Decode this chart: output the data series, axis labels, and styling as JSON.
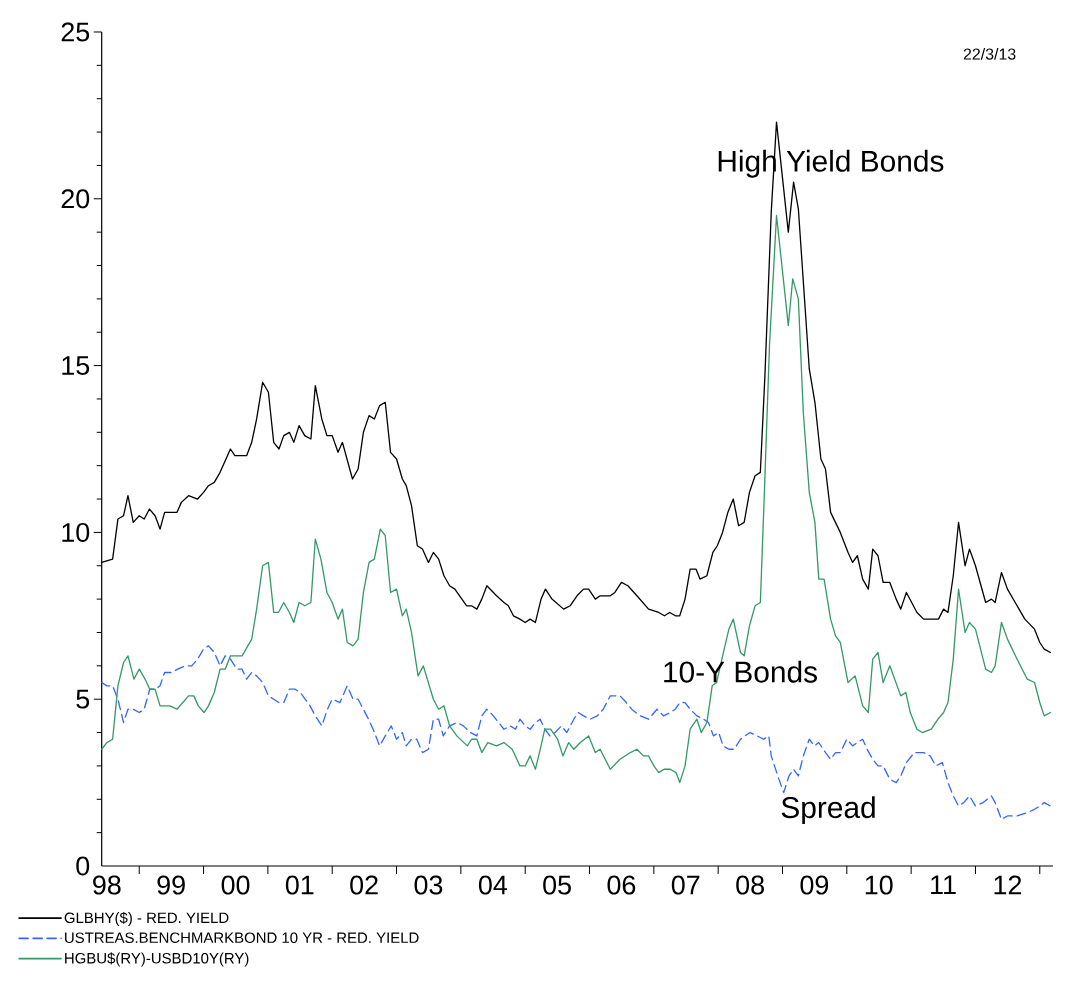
{
  "chart_data": {
    "type": "line",
    "xlim": [
      "1998-06-02",
      "2013-03-17"
    ],
    "xticks": [
      {
        "value": "1999-01-01",
        "label": null
      },
      {
        "value": "2000-01-01",
        "label": null
      },
      {
        "value": "2001-01-01",
        "label": null
      },
      {
        "value": "2002-01-01",
        "label": null
      },
      {
        "value": "2003-01-01",
        "label": null
      },
      {
        "value": "2004-01-01",
        "label": null
      },
      {
        "value": "2005-01-01",
        "label": null
      },
      {
        "value": "2006-01-01",
        "label": null
      },
      {
        "value": "2007-01-01",
        "label": null
      },
      {
        "value": "2008-01-01",
        "label": null
      },
      {
        "value": "2009-01-01",
        "label": null
      },
      {
        "value": "2010-01-01",
        "label": null
      },
      {
        "value": "2011-01-01",
        "label": null
      },
      {
        "value": "2012-01-01",
        "label": null
      },
      {
        "value": "2013-01-01",
        "label": null
      },
      {
        "value": "1998-07-01",
        "label": "98"
      },
      {
        "value": "1999-07-01",
        "label": "99"
      },
      {
        "value": "2000-07-01",
        "label": "00"
      },
      {
        "value": "2001-07-01",
        "label": "01"
      },
      {
        "value": "2002-07-01",
        "label": "02"
      },
      {
        "value": "2003-07-01",
        "label": "03"
      },
      {
        "value": "2004-07-01",
        "label": "04"
      },
      {
        "value": "2005-07-01",
        "label": "05"
      },
      {
        "value": "2006-07-01",
        "label": "06"
      },
      {
        "value": "2007-07-01",
        "label": "07"
      },
      {
        "value": "2008-07-01",
        "label": "08"
      },
      {
        "value": "2009-07-01",
        "label": "09"
      },
      {
        "value": "2010-07-01",
        "label": "10"
      },
      {
        "value": "2011-07-01",
        "label": "11"
      },
      {
        "value": "2012-07-01",
        "label": "12"
      }
    ],
    "ylim": [
      0,
      25
    ],
    "yticks": [
      0,
      {
        "value": 1,
        "label": null
      },
      {
        "value": 2,
        "label": null
      },
      {
        "value": 3,
        "label": null
      },
      {
        "value": 4,
        "label": null
      },
      5,
      {
        "value": 6,
        "label": null
      },
      {
        "value": 7,
        "label": null
      },
      {
        "value": 8,
        "label": null
      },
      {
        "value": 9,
        "label": null
      },
      10,
      {
        "value": 11,
        "label": null
      },
      {
        "value": 12,
        "label": null
      },
      {
        "value": 13,
        "label": null
      },
      {
        "value": 14,
        "label": null
      },
      15,
      {
        "value": 16,
        "label": null
      },
      {
        "value": 17,
        "label": null
      },
      {
        "value": 18,
        "label": null
      },
      {
        "value": 19,
        "label": null
      },
      20,
      {
        "value": 21,
        "label": null
      },
      {
        "value": 22,
        "label": null
      },
      {
        "value": 23,
        "label": null
      },
      {
        "value": 24,
        "label": null
      },
      25
    ],
    "marker": "none",
    "legend": "bottom",
    "annotations": [
      "22/3/13",
      "High Yield Bonds",
      "10-Y Bonds",
      "Spread"
    ],
    "series": [
      {
        "name": "GLBHY($) - RED. YIELD",
        "color": "#000000",
        "line_style": "solid",
        "x": [
          "1998-06-02",
          "1998-08-03",
          "1998-09-02",
          "1998-10-04",
          "1998-10-29",
          "1998-11-28",
          "1999-01-01",
          "1999-01-29",
          "1999-02-28",
          "1999-04-01",
          "1999-04-29",
          "1999-05-25",
          "1999-07-04",
          "1999-08-03",
          "1999-08-28",
          "1999-10-08",
          "1999-11-28",
          "2000-01-01",
          "2000-01-29",
          "2000-03-02",
          "2000-04-04",
          "2000-06-02",
          "2000-06-27",
          "2000-08-07",
          "2000-09-02",
          "2000-10-01",
          "2000-10-29",
          "2000-12-02",
          "2001-01-04",
          "2001-02-03",
          "2001-03-05",
          "2001-04-01",
          "2001-05-03",
          "2001-05-28",
          "2001-06-27",
          "2001-07-29",
          "2001-09-02",
          "2001-09-27",
          "2001-11-03",
          "2001-12-02",
          "2002-01-01",
          "2002-02-03",
          "2002-02-28",
          "2002-04-26",
          "2002-05-28",
          "2002-06-27",
          "2002-07-29",
          "2002-08-28",
          "2002-09-27",
          "2002-10-29",
          "2002-11-28",
          "2003-01-01",
          "2003-02-03",
          "2003-02-25",
          "2003-03-27",
          "2003-04-29",
          "2003-05-28",
          "2003-07-01",
          "2003-07-29",
          "2003-08-28",
          "2003-09-27",
          "2003-10-29",
          "2003-11-28",
          "2004-02-03",
          "2004-03-02",
          "2004-04-01",
          "2004-04-29",
          "2004-05-28",
          "2004-07-22",
          "2004-09-02",
          "2004-09-27",
          "2004-10-26",
          "2004-12-02",
          "2005-01-01",
          "2005-01-29",
          "2005-02-28",
          "2005-04-01",
          "2005-04-26",
          "2005-06-02",
          "2005-08-07",
          "2005-09-13",
          "2005-10-22",
          "2005-11-28",
          "2005-12-27",
          "2006-02-03",
          "2006-03-02",
          "2006-04-29",
          "2006-05-25",
          "2006-07-01",
          "2006-08-07",
          "2006-09-27",
          "2006-12-02",
          "2007-01-29",
          "2007-03-02",
          "2007-04-01",
          "2007-05-03",
          "2007-05-28",
          "2007-06-27",
          "2007-07-26",
          "2007-08-28",
          "2007-09-20",
          "2007-10-29",
          "2007-12-02",
          "2007-12-27",
          "2008-01-26",
          "2008-02-25",
          "2008-03-27",
          "2008-04-26",
          "2008-05-28",
          "2008-06-27",
          "2008-07-29",
          "2008-08-28",
          "2008-09-23",
          "2008-10-29",
          "2008-11-28",
          "2009-02-03",
          "2009-03-05",
          "2009-04-01",
          "2009-06-02",
          "2009-07-04",
          "2009-08-07",
          "2009-09-02",
          "2009-10-01",
          "2009-11-25",
          "2010-01-08",
          "2010-02-03",
          "2010-03-02",
          "2010-04-01",
          "2010-05-03",
          "2010-05-28",
          "2010-06-27",
          "2010-07-26",
          "2010-09-02",
          "2010-10-08",
          "2010-11-03",
          "2010-12-05",
          "2011-02-03",
          "2011-03-13",
          "2011-04-26",
          "2011-06-05",
          "2011-07-04",
          "2011-07-29",
          "2011-08-28",
          "2011-09-27",
          "2011-11-03",
          "2011-11-28",
          "2012-01-01",
          "2012-02-28",
          "2012-04-01",
          "2012-04-22",
          "2012-05-28",
          "2012-07-01",
          "2012-08-14",
          "2012-10-08",
          "2012-12-02",
          "2013-01-01",
          "2013-01-26",
          "2013-03-02"
        ],
        "values": [
          9.1,
          9.2,
          10.4,
          10.5,
          11.1,
          10.3,
          10.5,
          10.4,
          10.7,
          10.5,
          10.1,
          10.6,
          10.6,
          10.6,
          10.9,
          11.1,
          11.0,
          11.2,
          11.4,
          11.5,
          11.8,
          12.5,
          12.3,
          12.3,
          12.3,
          12.7,
          13.4,
          14.5,
          14.2,
          12.7,
          12.5,
          12.9,
          13.0,
          12.7,
          13.2,
          12.9,
          12.8,
          14.4,
          13.4,
          12.9,
          12.9,
          12.4,
          12.7,
          11.6,
          11.9,
          13.0,
          13.5,
          13.4,
          13.8,
          13.9,
          12.4,
          12.2,
          11.6,
          11.4,
          10.8,
          9.6,
          9.5,
          9.1,
          9.4,
          9.2,
          8.7,
          8.4,
          8.3,
          7.8,
          7.8,
          7.7,
          8.0,
          8.4,
          8.1,
          7.9,
          7.8,
          7.5,
          7.4,
          7.3,
          7.4,
          7.3,
          8.0,
          8.3,
          8.0,
          7.7,
          7.8,
          8.1,
          8.3,
          8.3,
          8.0,
          8.1,
          8.1,
          8.2,
          8.5,
          8.4,
          8.1,
          7.7,
          7.6,
          7.5,
          7.6,
          7.5,
          7.5,
          8.0,
          8.9,
          8.9,
          8.6,
          8.7,
          9.4,
          9.6,
          10.0,
          10.6,
          11.0,
          10.2,
          10.3,
          11.2,
          11.7,
          11.8,
          14.7,
          19.6,
          22.3,
          19.0,
          20.5,
          19.7,
          14.9,
          13.9,
          12.2,
          11.9,
          10.6,
          10.0,
          9.4,
          9.1,
          9.3,
          8.6,
          8.3,
          9.5,
          9.3,
          8.5,
          8.5,
          8.0,
          7.7,
          8.2,
          7.6,
          7.4,
          7.4,
          7.4,
          7.7,
          7.6,
          8.7,
          10.3,
          9.0,
          9.5,
          9.0,
          7.9,
          8.0,
          7.9,
          8.8,
          8.3,
          7.9,
          7.4,
          7.1,
          6.7,
          6.5,
          6.4
        ]
      },
      {
        "name": "USTREAS.BENCHMARKBOND 10 YR - RED. YIELD",
        "color": "#3366ff",
        "line_style": "dashed",
        "x": [
          "1998-06-02",
          "1998-07-01",
          "1998-08-03",
          "1998-09-02",
          "1998-10-04",
          "1998-10-29",
          "1998-11-28",
          "1999-01-01",
          "1999-01-29",
          "1999-03-02",
          "1999-04-04",
          "1999-04-29",
          "1999-05-25",
          "1999-07-04",
          "1999-08-07",
          "1999-09-20",
          "1999-10-26",
          "1999-11-28",
          "2000-01-01",
          "2000-01-29",
          "2000-03-02",
          "2000-04-04",
          "2000-05-03",
          "2000-06-02",
          "2000-07-08",
          "2000-08-07",
          "2000-09-02",
          "2000-10-01",
          "2000-10-29",
          "2000-12-02",
          "2001-01-04",
          "2001-02-03",
          "2001-03-05",
          "2001-04-01",
          "2001-05-03",
          "2001-06-05",
          "2001-07-04",
          "2001-08-28",
          "2001-09-27",
          "2001-11-03",
          "2001-12-05",
          "2002-01-01",
          "2002-02-14",
          "2002-03-27",
          "2002-04-29",
          "2002-05-28",
          "2002-07-26",
          "2002-08-21",
          "2002-09-27",
          "2002-10-29",
          "2002-12-02",
          "2003-01-01",
          "2003-02-03",
          "2003-02-25",
          "2003-03-27",
          "2003-04-26",
          "2003-05-28",
          "2003-07-01",
          "2003-07-29",
          "2003-08-28",
          "2003-09-23",
          "2003-10-29",
          "2003-12-09",
          "2004-01-15",
          "2004-02-25",
          "2004-04-01",
          "2004-04-29",
          "2004-05-28",
          "2004-07-04",
          "2004-08-03",
          "2004-09-02",
          "2004-10-08",
          "2004-11-07",
          "2004-12-02",
          "2005-01-01",
          "2005-01-29",
          "2005-02-28",
          "2005-03-27",
          "2005-04-22",
          "2005-05-21",
          "2005-06-20",
          "2005-07-26",
          "2005-08-25",
          "2005-10-04",
          "2005-10-29",
          "2005-11-28",
          "2006-01-04",
          "2006-02-14",
          "2006-03-20",
          "2006-04-29",
          "2006-06-23",
          "2006-07-29",
          "2006-08-28",
          "2006-10-15",
          "2006-12-02",
          "2007-01-19",
          "2007-02-25",
          "2007-04-04",
          "2007-05-03",
          "2007-05-28",
          "2007-06-27",
          "2007-07-26",
          "2007-09-02",
          "2007-10-11",
          "2007-11-07",
          "2007-12-05",
          "2008-01-04",
          "2008-01-29",
          "2008-03-02",
          "2008-04-01",
          "2008-05-07",
          "2008-06-02",
          "2008-07-01",
          "2008-08-10",
          "2008-09-16",
          "2008-10-15",
          "2008-10-29",
          "2008-12-05",
          "2009-01-08",
          "2009-02-07",
          "2009-03-05",
          "2009-04-01",
          "2009-04-29",
          "2009-06-02",
          "2009-07-01",
          "2009-07-26",
          "2009-09-02",
          "2009-10-01",
          "2009-10-29",
          "2009-11-25",
          "2010-01-01",
          "2010-02-03",
          "2010-03-02",
          "2010-04-01",
          "2010-04-26",
          "2010-05-28",
          "2010-06-27",
          "2010-07-26",
          "2010-09-02",
          "2010-10-08",
          "2010-11-03",
          "2010-12-05",
          "2011-01-19",
          "2011-03-13",
          "2011-04-19",
          "2011-05-21",
          "2011-06-27",
          "2011-07-29",
          "2011-08-28",
          "2011-09-27",
          "2011-10-26",
          "2011-11-28",
          "2012-01-01",
          "2012-02-14",
          "2012-04-01",
          "2012-04-22",
          "2012-05-28",
          "2012-07-01",
          "2012-08-25",
          "2012-10-22",
          "2012-12-02",
          "2013-01-01",
          "2013-01-26",
          "2013-03-02"
        ],
        "values": [
          5.5,
          5.4,
          5.4,
          5.0,
          4.3,
          4.7,
          4.7,
          4.6,
          4.7,
          5.3,
          5.3,
          5.4,
          5.8,
          5.8,
          5.9,
          6.0,
          6.0,
          6.2,
          6.5,
          6.6,
          6.4,
          6.0,
          6.3,
          6.2,
          5.9,
          5.9,
          5.6,
          5.8,
          5.7,
          5.5,
          5.1,
          5.0,
          4.9,
          4.9,
          5.3,
          5.3,
          5.2,
          4.8,
          4.5,
          4.2,
          4.7,
          5.0,
          4.9,
          5.4,
          5.0,
          5.0,
          4.4,
          4.1,
          3.6,
          3.9,
          4.2,
          3.8,
          4.0,
          3.6,
          3.8,
          3.8,
          3.4,
          3.5,
          4.4,
          4.4,
          3.9,
          4.2,
          4.3,
          4.2,
          4.0,
          3.9,
          4.5,
          4.7,
          4.5,
          4.3,
          4.1,
          4.2,
          4.1,
          4.4,
          4.2,
          4.1,
          4.3,
          4.4,
          4.1,
          3.9,
          4.0,
          4.2,
          4.0,
          4.4,
          4.6,
          4.5,
          4.4,
          4.5,
          4.7,
          5.1,
          5.1,
          4.9,
          4.7,
          4.5,
          4.4,
          4.7,
          4.5,
          4.6,
          4.7,
          4.9,
          4.9,
          4.7,
          4.5,
          4.4,
          4.3,
          3.9,
          4.0,
          3.6,
          3.5,
          3.5,
          3.8,
          3.9,
          4.0,
          3.9,
          3.8,
          3.9,
          3.3,
          2.7,
          2.2,
          2.7,
          2.9,
          2.7,
          3.3,
          3.8,
          3.6,
          3.7,
          3.4,
          3.2,
          3.4,
          3.4,
          3.8,
          3.6,
          3.7,
          3.8,
          3.5,
          3.2,
          3.0,
          3.0,
          2.6,
          2.5,
          2.7,
          3.1,
          3.4,
          3.4,
          3.3,
          3.0,
          3.1,
          2.5,
          2.1,
          1.8,
          1.9,
          2.1,
          1.8,
          1.9,
          2.1,
          1.9,
          1.4,
          1.5,
          1.5,
          1.6,
          1.7,
          1.8,
          1.9,
          1.8
        ]
      },
      {
        "name": "HGBU$(RY)-USBD10Y(RY)",
        "color": "#339966",
        "line_style": "solid",
        "x": [
          "1998-06-02",
          "1998-07-01",
          "1998-08-03",
          "1998-09-02",
          "1998-10-04",
          "1998-10-29",
          "1998-12-02",
          "1999-01-01",
          "1999-02-03",
          "1999-03-02",
          "1999-04-01",
          "1999-04-29",
          "1999-06-23",
          "1999-08-03",
          "1999-10-08",
          "1999-11-07",
          "1999-12-02",
          "2000-01-04",
          "2000-01-29",
          "2000-03-02",
          "2000-04-04",
          "2000-05-03",
          "2000-06-02",
          "2000-07-08",
          "2000-08-07",
          "2000-10-01",
          "2000-10-29",
          "2000-12-02",
          "2001-01-04",
          "2001-02-03",
          "2001-03-02",
          "2001-04-01",
          "2001-05-03",
          "2001-05-28",
          "2001-06-27",
          "2001-07-29",
          "2001-09-02",
          "2001-09-27",
          "2001-10-29",
          "2001-12-02",
          "2002-01-01",
          "2002-02-03",
          "2002-02-28",
          "2002-03-27",
          "2002-04-29",
          "2002-05-28",
          "2002-06-27",
          "2002-07-29",
          "2002-08-28",
          "2002-10-01",
          "2002-10-29",
          "2002-11-28",
          "2003-01-01",
          "2003-02-03",
          "2003-02-25",
          "2003-03-27",
          "2003-05-03",
          "2003-06-02",
          "2003-07-29",
          "2003-08-28",
          "2003-09-27",
          "2003-10-29",
          "2003-12-09",
          "2004-02-07",
          "2004-03-02",
          "2004-04-01",
          "2004-04-29",
          "2004-06-02",
          "2004-07-22",
          "2004-09-02",
          "2004-10-19",
          "2004-12-02",
          "2005-01-01",
          "2005-01-29",
          "2005-02-28",
          "2005-04-01",
          "2005-04-22",
          "2005-05-25",
          "2005-07-04",
          "2005-08-03",
          "2005-09-05",
          "2005-10-04",
          "2005-11-10",
          "2005-12-27",
          "2006-02-03",
          "2006-03-02",
          "2006-04-29",
          "2006-06-23",
          "2006-08-21",
          "2006-09-27",
          "2006-11-03",
          "2006-12-02",
          "2007-01-01",
          "2007-01-29",
          "2007-02-28",
          "2007-04-04",
          "2007-05-07",
          "2007-05-28",
          "2007-06-27",
          "2007-07-26",
          "2007-09-02",
          "2007-09-27",
          "2007-10-29",
          "2007-11-28",
          "2007-12-23",
          "2008-01-22",
          "2008-03-02",
          "2008-03-27",
          "2008-05-07",
          "2008-05-28",
          "2008-06-27",
          "2008-07-29",
          "2008-08-28",
          "2008-09-20",
          "2008-10-19",
          "2008-11-28",
          "2009-02-03",
          "2009-02-28",
          "2009-04-01",
          "2009-04-29",
          "2009-06-02",
          "2009-07-04",
          "2009-07-26",
          "2009-08-25",
          "2009-10-01",
          "2009-10-29",
          "2009-11-25",
          "2010-01-08",
          "2010-02-17",
          "2010-04-01",
          "2010-05-03",
          "2010-05-28",
          "2010-06-27",
          "2010-07-26",
          "2010-09-02",
          "2010-11-03",
          "2010-12-02",
          "2010-12-27",
          "2011-02-03",
          "2011-03-05",
          "2011-04-26",
          "2011-06-02",
          "2011-07-04",
          "2011-07-29",
          "2011-08-28",
          "2011-09-27",
          "2011-11-03",
          "2011-11-28",
          "2012-01-01",
          "2012-02-28",
          "2012-04-01",
          "2012-04-22",
          "2012-05-28",
          "2012-07-01",
          "2012-08-25",
          "2012-10-22",
          "2012-12-02",
          "2013-01-01",
          "2013-01-26",
          "2013-03-02"
        ],
        "values": [
          3.5,
          3.7,
          3.8,
          5.4,
          6.1,
          6.3,
          5.6,
          5.9,
          5.6,
          5.3,
          5.3,
          4.8,
          4.8,
          4.7,
          5.1,
          5.1,
          4.8,
          4.6,
          4.8,
          5.2,
          5.9,
          5.9,
          6.3,
          6.3,
          6.3,
          6.8,
          7.7,
          9.0,
          9.1,
          7.6,
          7.6,
          7.9,
          7.6,
          7.3,
          7.9,
          7.8,
          7.9,
          9.8,
          9.2,
          8.2,
          7.9,
          7.4,
          7.7,
          6.7,
          6.6,
          6.8,
          8.2,
          9.1,
          9.2,
          10.1,
          9.9,
          8.2,
          8.3,
          7.5,
          7.7,
          7.0,
          5.7,
          6.0,
          5.0,
          4.7,
          4.8,
          4.2,
          3.9,
          3.6,
          3.8,
          3.8,
          3.4,
          3.7,
          3.6,
          3.7,
          3.5,
          3.0,
          3.0,
          3.3,
          2.9,
          3.6,
          4.1,
          4.1,
          3.8,
          3.3,
          3.7,
          3.5,
          3.7,
          3.9,
          3.4,
          3.5,
          2.9,
          3.2,
          3.4,
          3.5,
          3.3,
          3.3,
          3.0,
          2.8,
          2.9,
          2.9,
          2.8,
          2.5,
          3.0,
          4.1,
          4.4,
          4.0,
          4.3,
          5.4,
          5.5,
          6.2,
          7.1,
          7.4,
          6.4,
          6.3,
          7.2,
          7.8,
          7.9,
          11.2,
          15.6,
          19.5,
          16.2,
          17.6,
          17.0,
          13.6,
          11.2,
          10.3,
          8.6,
          8.6,
          7.4,
          6.9,
          6.7,
          5.5,
          5.7,
          4.8,
          4.6,
          6.2,
          6.4,
          5.5,
          6.0,
          5.1,
          5.2,
          4.6,
          4.1,
          4.0,
          4.1,
          4.4,
          4.6,
          4.9,
          6.2,
          8.3,
          7.0,
          7.3,
          7.1,
          5.9,
          5.8,
          6.0,
          7.3,
          6.8,
          6.2,
          5.6,
          5.5,
          4.9,
          4.5,
          4.6
        ]
      }
    ]
  }
}
